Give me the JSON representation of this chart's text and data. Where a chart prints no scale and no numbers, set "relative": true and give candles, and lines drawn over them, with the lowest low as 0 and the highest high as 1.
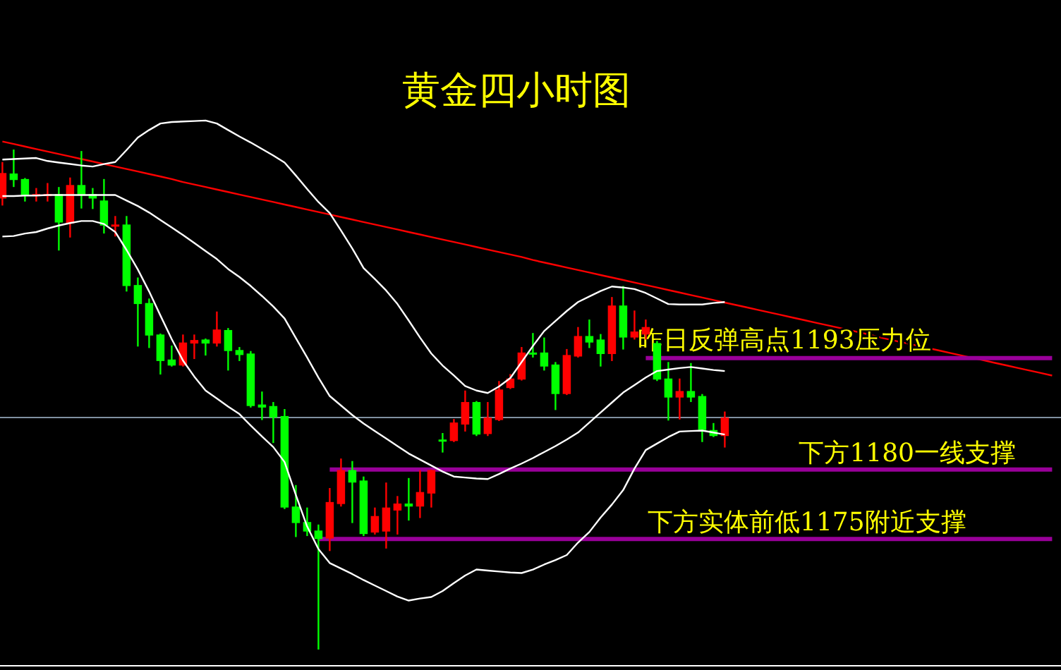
{
  "chart_data": {
    "type": "candlestick",
    "title": "黄金四小时图",
    "relative": true,
    "categories": [
      null,
      null,
      null,
      null,
      null,
      null,
      null,
      null,
      null,
      null,
      null,
      null,
      null,
      null,
      null,
      null,
      null,
      null,
      null,
      null,
      null,
      null,
      null,
      null,
      null,
      null,
      null,
      null,
      null,
      null,
      null,
      null,
      null,
      null,
      null,
      null,
      null,
      null,
      null,
      null,
      null,
      null,
      null,
      null,
      null,
      null,
      null,
      null,
      null,
      null,
      null,
      null,
      null,
      null,
      null,
      null,
      null,
      null,
      null,
      null,
      null,
      null,
      null,
      null,
      null,
      null,
      null,
      null,
      null,
      null,
      null,
      null,
      null,
      null,
      null,
      null,
      null,
      null,
      null,
      null,
      null,
      null,
      null,
      null,
      null,
      null,
      null,
      null,
      null,
      null,
      null,
      null,
      null,
      null
    ],
    "ohlc": [
      [
        0.902,
        0.975,
        0.888,
        0.953
      ],
      [
        0.952,
        1.0,
        0.925,
        0.939
      ],
      [
        0.941,
        0.943,
        0.896,
        0.908
      ],
      [
        0.91,
        0.923,
        0.896,
        0.911
      ],
      [
        0.908,
        0.933,
        0.896,
        0.911
      ],
      [
        0.911,
        0.925,
        0.798,
        0.854
      ],
      [
        0.852,
        0.944,
        0.824,
        0.929
      ],
      [
        0.929,
        0.997,
        0.882,
        0.908
      ],
      [
        0.911,
        0.923,
        0.881,
        0.902
      ],
      [
        0.898,
        0.941,
        0.832,
        0.848
      ],
      [
        0.847,
        0.867,
        0.826,
        0.85
      ],
      [
        0.85,
        0.867,
        0.716,
        0.727
      ],
      [
        0.729,
        0.744,
        0.606,
        0.691
      ],
      [
        0.693,
        0.702,
        0.603,
        0.628
      ],
      [
        0.63,
        0.632,
        0.55,
        0.577
      ],
      [
        0.58,
        0.608,
        0.566,
        0.568
      ],
      [
        0.568,
        0.63,
        0.566,
        0.614
      ],
      [
        0.612,
        0.63,
        0.581,
        0.619
      ],
      [
        0.62,
        0.622,
        0.588,
        0.612
      ],
      [
        0.612,
        0.676,
        0.606,
        0.64
      ],
      [
        0.639,
        0.643,
        0.558,
        0.597
      ],
      [
        0.599,
        0.605,
        0.577,
        0.589
      ],
      [
        0.592,
        0.597,
        0.484,
        0.487
      ],
      [
        0.49,
        0.516,
        0.459,
        0.484
      ],
      [
        0.487,
        0.495,
        0.413,
        0.464
      ],
      [
        0.467,
        0.481,
        0.281,
        0.284
      ],
      [
        0.286,
        0.329,
        0.225,
        0.253
      ],
      [
        0.255,
        0.284,
        0.227,
        0.236
      ],
      [
        0.238,
        0.25,
        0.0,
        0.221
      ],
      [
        0.222,
        0.323,
        0.197,
        0.295
      ],
      [
        0.291,
        0.382,
        0.286,
        0.359
      ],
      [
        0.359,
        0.377,
        0.253,
        0.334
      ],
      [
        0.338,
        0.346,
        0.227,
        0.231
      ],
      [
        0.234,
        0.284,
        0.23,
        0.267
      ],
      [
        0.236,
        0.334,
        0.202,
        0.284
      ],
      [
        0.278,
        0.307,
        0.23,
        0.292
      ],
      [
        0.292,
        0.343,
        0.258,
        0.286
      ],
      [
        0.286,
        0.359,
        0.263,
        0.315
      ],
      [
        0.312,
        0.36,
        0.284,
        0.359
      ],
      [
        0.42,
        0.433,
        0.394,
        0.419
      ],
      [
        0.417,
        0.461,
        0.415,
        0.454
      ],
      [
        0.45,
        0.518,
        0.436,
        0.495
      ],
      [
        0.495,
        0.497,
        0.427,
        0.43
      ],
      [
        0.431,
        0.495,
        0.427,
        0.464
      ],
      [
        0.459,
        0.537,
        0.457,
        0.52
      ],
      [
        0.523,
        0.551,
        0.521,
        0.542
      ],
      [
        0.54,
        0.605,
        0.538,
        0.594
      ],
      [
        0.594,
        0.633,
        0.584,
        0.59
      ],
      [
        0.594,
        0.624,
        0.558,
        0.566
      ],
      [
        0.57,
        0.575,
        0.479,
        0.511
      ],
      [
        0.511,
        0.601,
        0.509,
        0.589
      ],
      [
        0.586,
        0.645,
        0.584,
        0.627
      ],
      [
        0.627,
        0.66,
        0.603,
        0.614
      ],
      [
        0.62,
        0.631,
        0.566,
        0.591
      ],
      [
        0.591,
        0.705,
        0.577,
        0.688
      ],
      [
        0.688,
        0.727,
        0.6,
        0.624
      ],
      [
        0.624,
        0.678,
        0.62,
        0.636
      ],
      [
        0.63,
        0.66,
        0.62,
        0.645
      ],
      [
        0.613,
        0.617,
        0.537,
        0.54
      ],
      [
        0.542,
        0.575,
        0.458,
        0.504
      ],
      [
        0.504,
        0.542,
        0.46,
        0.517
      ],
      [
        0.517,
        0.573,
        0.495,
        0.504
      ],
      [
        0.507,
        0.511,
        0.415,
        0.439
      ],
      [
        0.439,
        0.453,
        0.425,
        0.427
      ],
      [
        0.427,
        0.476,
        0.404,
        0.464
      ],
      null,
      null,
      null,
      null,
      null,
      null,
      null,
      null,
      null,
      null,
      null,
      null,
      null,
      null,
      null,
      null,
      null,
      null,
      null,
      null,
      null,
      null,
      null,
      null,
      null,
      null,
      null,
      null,
      null
    ],
    "series": [
      {
        "type": "line",
        "color": "#ffffff",
        "values": [
          0.98,
          0.981,
          0.982,
          0.983,
          0.977,
          0.974,
          0.971,
          0.968,
          0.966,
          0.971,
          0.975,
          0.999,
          1.024,
          1.039,
          1.052,
          1.055,
          1.056,
          1.057,
          1.058,
          1.052,
          1.039,
          1.026,
          1.014,
          1.001,
          0.988,
          0.974,
          0.948,
          0.921,
          0.895,
          0.873,
          0.838,
          0.802,
          0.763,
          0.741,
          0.718,
          0.691,
          0.658,
          0.624,
          0.592,
          0.568,
          0.548,
          0.527,
          0.518,
          0.513,
          0.526,
          0.543,
          0.575,
          0.607,
          0.637,
          0.657,
          0.677,
          0.695,
          0.706,
          0.717,
          0.726,
          0.724,
          0.721,
          0.713,
          0.702,
          0.691,
          0.69,
          0.69,
          0.69,
          0.693,
          0.695,
          null,
          null,
          null,
          null,
          null,
          null,
          null,
          null,
          null,
          null,
          null,
          null,
          null,
          null,
          null,
          null,
          null,
          null,
          null,
          null,
          null,
          null,
          null,
          null,
          null,
          null,
          null,
          null,
          null
        ]
      },
      {
        "type": "line",
        "color": "#ffffff",
        "values": [
          0.907,
          0.907,
          0.908,
          0.908,
          0.909,
          0.909,
          0.909,
          0.909,
          0.909,
          0.909,
          0.909,
          0.898,
          0.887,
          0.874,
          0.859,
          0.844,
          0.829,
          0.813,
          0.797,
          0.781,
          0.761,
          0.745,
          0.727,
          0.707,
          0.686,
          0.662,
          0.623,
          0.584,
          0.544,
          0.507,
          0.488,
          0.469,
          0.452,
          0.437,
          0.422,
          0.407,
          0.392,
          0.38,
          0.368,
          0.356,
          0.346,
          0.344,
          0.342,
          0.341,
          0.351,
          0.362,
          0.372,
          0.383,
          0.395,
          0.407,
          0.42,
          0.434,
          0.454,
          0.474,
          0.494,
          0.514,
          0.529,
          0.544,
          0.557,
          0.56,
          0.563,
          0.565,
          0.562,
          0.559,
          0.557,
          null,
          null,
          null,
          null,
          null,
          null,
          null,
          null,
          null,
          null,
          null,
          null,
          null,
          null,
          null,
          null,
          null,
          null,
          null,
          null,
          null,
          null,
          null,
          null,
          null,
          null,
          null,
          null,
          null
        ]
      },
      {
        "type": "line",
        "color": "#ffffff",
        "values": [
          0.826,
          0.827,
          0.832,
          0.835,
          0.842,
          0.848,
          0.853,
          0.857,
          0.857,
          0.851,
          0.835,
          0.799,
          0.76,
          0.716,
          0.668,
          0.621,
          0.578,
          0.546,
          0.518,
          0.502,
          0.486,
          0.471,
          0.448,
          0.426,
          0.405,
          0.375,
          0.309,
          0.246,
          0.201,
          0.173,
          0.162,
          0.151,
          0.139,
          0.128,
          0.117,
          0.106,
          0.098,
          0.102,
          0.105,
          0.117,
          0.133,
          0.148,
          0.16,
          0.158,
          0.156,
          0.154,
          0.153,
          0.16,
          0.17,
          0.179,
          0.189,
          0.214,
          0.235,
          0.264,
          0.29,
          0.319,
          0.362,
          0.399,
          0.412,
          0.425,
          0.436,
          0.437,
          0.438,
          0.434,
          0.43,
          null,
          null,
          null,
          null,
          null,
          null,
          null,
          null,
          null,
          null,
          null,
          null,
          null,
          null,
          null,
          null,
          null,
          null,
          null,
          null,
          null,
          null,
          null,
          null,
          null,
          null,
          null,
          null,
          null
        ]
      },
      {
        "type": "line",
        "color": "#ff0000",
        "values": [
          1.016,
          1.011,
          1.006,
          1.001,
          0.996,
          0.991,
          0.986,
          0.981,
          0.976,
          0.971,
          0.966,
          0.961,
          0.956,
          0.951,
          0.946,
          0.941,
          0.935,
          0.93,
          0.925,
          0.92,
          0.915,
          0.91,
          0.905,
          0.9,
          0.895,
          0.89,
          0.885,
          0.88,
          0.875,
          0.87,
          0.865,
          0.86,
          0.855,
          0.85,
          0.845,
          0.84,
          0.835,
          0.83,
          0.825,
          0.82,
          0.815,
          0.81,
          0.805,
          0.8,
          0.795,
          0.79,
          0.785,
          0.779,
          0.774,
          0.769,
          0.764,
          0.759,
          0.754,
          0.749,
          0.744,
          0.739,
          0.734,
          0.729,
          0.724,
          0.719,
          0.714,
          0.709,
          0.704,
          0.699,
          0.694,
          0.689,
          0.684,
          0.679,
          0.674,
          0.669,
          0.664,
          0.659,
          0.654,
          0.649,
          0.644,
          0.639,
          0.634,
          0.629,
          0.623,
          0.618,
          0.613,
          0.608,
          0.603,
          0.598,
          0.593,
          0.588,
          0.583,
          0.578,
          0.573,
          0.568,
          0.563,
          0.558,
          0.553,
          0.548
        ]
      },
      {
        "type": "line",
        "color": "#990099",
        "values": [
          null,
          null,
          null,
          null,
          null,
          null,
          null,
          null,
          null,
          null,
          null,
          null,
          null,
          null,
          null,
          null,
          null,
          null,
          null,
          null,
          null,
          null,
          null,
          null,
          null,
          null,
          null,
          null,
          null,
          null,
          null,
          null,
          null,
          null,
          null,
          null,
          null,
          null,
          null,
          null,
          null,
          null,
          null,
          null,
          null,
          null,
          null,
          null,
          null,
          null,
          null,
          null,
          null,
          null,
          null,
          null,
          null,
          0.583,
          0.583,
          0.583,
          0.583,
          0.583,
          0.583,
          0.583,
          0.583,
          0.583,
          0.583,
          0.583,
          0.583,
          0.583,
          0.583,
          0.583,
          0.583,
          0.583,
          0.583,
          0.583,
          0.583,
          0.583,
          0.583,
          0.583,
          0.583,
          0.583,
          0.583,
          0.583,
          0.583,
          0.583,
          0.583,
          0.583,
          0.583,
          0.583,
          0.583,
          0.583,
          0.583,
          0.583
        ]
      },
      {
        "type": "line",
        "color": "#990099",
        "values": [
          null,
          null,
          null,
          null,
          null,
          null,
          null,
          null,
          null,
          null,
          null,
          null,
          null,
          null,
          null,
          null,
          null,
          null,
          null,
          null,
          null,
          null,
          null,
          null,
          null,
          null,
          null,
          null,
          null,
          0.36,
          0.36,
          0.36,
          0.36,
          0.36,
          0.36,
          0.36,
          0.36,
          0.36,
          0.36,
          0.36,
          0.36,
          0.36,
          0.36,
          0.36,
          0.36,
          0.36,
          0.36,
          0.36,
          0.36,
          0.36,
          0.36,
          0.36,
          0.36,
          0.36,
          0.36,
          0.36,
          0.36,
          0.36,
          0.36,
          0.36,
          0.36,
          0.36,
          0.36,
          0.36,
          0.36,
          0.36,
          0.36,
          0.36,
          0.36,
          0.36,
          0.36,
          0.36,
          0.36,
          0.36,
          0.36,
          0.36,
          0.36,
          0.36,
          0.36,
          0.36,
          0.36,
          0.36,
          0.36,
          0.36,
          0.36,
          0.36,
          0.36,
          0.36,
          0.36,
          0.36,
          0.36,
          0.36,
          0.36,
          0.36
        ]
      },
      {
        "type": "line",
        "color": "#990099",
        "values": [
          null,
          null,
          null,
          null,
          null,
          null,
          null,
          null,
          null,
          null,
          null,
          null,
          null,
          null,
          null,
          null,
          null,
          null,
          null,
          null,
          null,
          null,
          null,
          null,
          null,
          null,
          null,
          null,
          0.221,
          0.221,
          0.221,
          0.221,
          0.221,
          0.221,
          0.221,
          0.221,
          0.221,
          0.221,
          0.221,
          0.221,
          0.221,
          0.221,
          0.221,
          0.221,
          0.221,
          0.221,
          0.221,
          0.221,
          0.221,
          0.221,
          0.221,
          0.221,
          0.221,
          0.221,
          0.221,
          0.221,
          0.221,
          0.221,
          0.221,
          0.221,
          0.221,
          0.221,
          0.221,
          0.221,
          0.221,
          0.221,
          0.221,
          0.221,
          0.221,
          0.221,
          0.221,
          0.221,
          0.221,
          0.221,
          0.221,
          0.221,
          0.221,
          0.221,
          0.221,
          0.221,
          0.221,
          0.221,
          0.221,
          0.221,
          0.221,
          0.221,
          0.221,
          0.221,
          0.221,
          0.221,
          0.221,
          0.221,
          0.221,
          0.221
        ]
      }
    ],
    "ref_lines": [
      {
        "axis": "y",
        "value": 0.464,
        "color": "#8090a0"
      }
    ],
    "annotations": [
      "昨日反弹高点1193压力位",
      "下方1180一线支撑",
      "下方实体前低1175附近支撑"
    ]
  }
}
